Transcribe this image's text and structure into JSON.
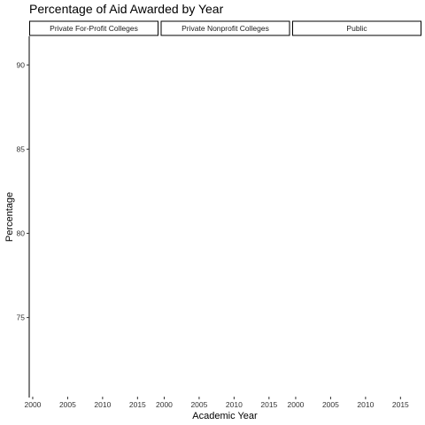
{
  "chart_data": {
    "type": "line",
    "title": "Percentage of Aid Awarded by Year",
    "xlabel": "Academic Year",
    "ylabel": "Percentage",
    "facets": [
      "Private For-Profit Colleges",
      "Private Nonprofit Colleges",
      "Public"
    ],
    "x_ticks": [
      2000,
      2005,
      2010,
      2015
    ],
    "x_tick_labels": [
      "2000",
      "2005",
      "2010",
      "2015"
    ],
    "y_ticks": [
      75,
      80,
      85,
      90
    ],
    "y_tick_labels": [
      "75",
      "80",
      "85",
      "90"
    ],
    "xlim": [
      1999.5,
      2018
    ],
    "ylim": [
      70.3,
      91.7
    ],
    "series": [],
    "grid": false,
    "legend": "none",
    "colors": {
      "axis": "#000000",
      "strip_border": "#000000",
      "background": "#ffffff"
    }
  }
}
